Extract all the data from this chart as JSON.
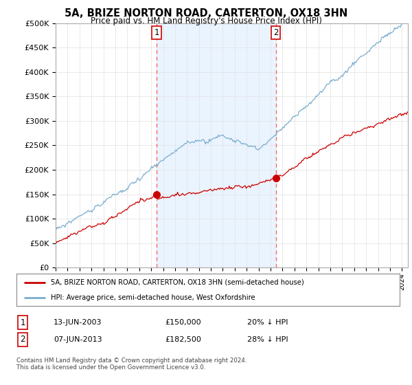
{
  "title": "5A, BRIZE NORTON ROAD, CARTERTON, OX18 3HN",
  "subtitle": "Price paid vs. HM Land Registry's House Price Index (HPI)",
  "ylim": [
    0,
    500000
  ],
  "yticks": [
    0,
    50000,
    100000,
    150000,
    200000,
    250000,
    300000,
    350000,
    400000,
    450000,
    500000
  ],
  "sale1_x": 2003.45,
  "sale1_price": 150000,
  "sale2_x": 2013.44,
  "sale2_price": 182500,
  "red_line_color": "#cc0000",
  "blue_line_color": "#7aadcf",
  "shade_color": "#ddeeff",
  "marker_color": "#cc0000",
  "vline_color": "#ff6666",
  "grid_color": "#e0e0e0",
  "legend_label_red": "5A, BRIZE NORTON ROAD, CARTERTON, OX18 3HN (semi-detached house)",
  "legend_label_blue": "HPI: Average price, semi-detached house, West Oxfordshire",
  "table_row1": [
    "1",
    "13-JUN-2003",
    "£150,000",
    "20% ↓ HPI"
  ],
  "table_row2": [
    "2",
    "07-JUN-2013",
    "£182,500",
    "28% ↓ HPI"
  ],
  "footer": "Contains HM Land Registry data © Crown copyright and database right 2024.\nThis data is licensed under the Open Government Licence v3.0.",
  "background_color": "#ffffff",
  "xlim_start": 1995.0,
  "xlim_end": 2024.5
}
